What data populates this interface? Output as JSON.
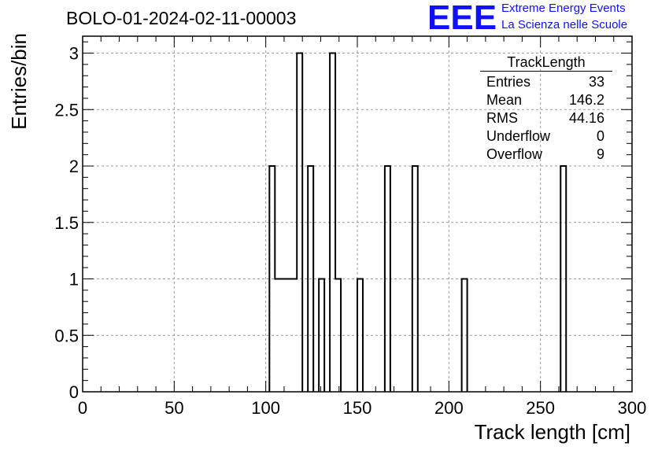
{
  "header": {
    "run_title": "BOLO-01-2024-02-11-00003"
  },
  "logo": {
    "mark": "EEE",
    "line1": "Extreme Energy Events",
    "line2": "La Scienza nelle Scuole",
    "color": "#1010ff"
  },
  "stats": {
    "title": "TrackLength",
    "rows": [
      {
        "label": "Entries",
        "value": "33"
      },
      {
        "label": "Mean",
        "value": "146.2"
      },
      {
        "label": "RMS",
        "value": "44.16"
      },
      {
        "label": "Underflow",
        "value": "0"
      },
      {
        "label": "Overflow",
        "value": "9"
      }
    ]
  },
  "chart_data": {
    "type": "histogram",
    "xlabel": "Track length [cm]",
    "ylabel": "Entries/bin",
    "xlim": [
      0,
      300
    ],
    "ylim": [
      0,
      3.15
    ],
    "grid": true,
    "x_ticks": [
      "0",
      "50",
      "100",
      "150",
      "200",
      "250",
      "300"
    ],
    "y_ticks": [
      "0",
      "0.5",
      "1",
      "1.5",
      "2",
      "2.5",
      "3"
    ],
    "bin_width": 3,
    "bins": [
      {
        "x_low": 102,
        "value": 2
      },
      {
        "x_low": 105,
        "value": 1
      },
      {
        "x_low": 108,
        "value": 1
      },
      {
        "x_low": 111,
        "value": 1
      },
      {
        "x_low": 114,
        "value": 1
      },
      {
        "x_low": 117,
        "value": 3
      },
      {
        "x_low": 123,
        "value": 2
      },
      {
        "x_low": 129,
        "value": 1
      },
      {
        "x_low": 135,
        "value": 3
      },
      {
        "x_low": 138,
        "value": 1
      },
      {
        "x_low": 150,
        "value": 1
      },
      {
        "x_low": 165,
        "value": 2
      },
      {
        "x_low": 180,
        "value": 2
      },
      {
        "x_low": 207,
        "value": 1
      },
      {
        "x_low": 261,
        "value": 2
      }
    ],
    "line_color": "#000000"
  }
}
